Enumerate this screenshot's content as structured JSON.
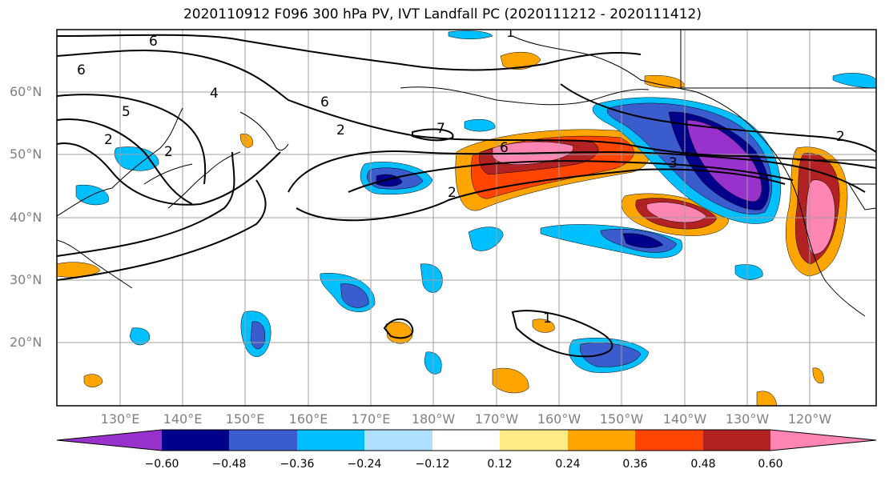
{
  "title": "2020110912 F096 300 hPa PV, IVT Landfall PC (2020111212 - 2020111412)",
  "lat_labels": [
    "60°N",
    "50°N",
    "40°N",
    "30°N",
    "20°N"
  ],
  "lon_labels": [
    "130°E",
    "140°E",
    "150°E",
    "160°E",
    "170°E",
    "180°W",
    "170°W",
    "160°W",
    "150°W",
    "140°W",
    "130°W",
    "120°W"
  ],
  "contour_labels": [
    "1",
    "6",
    "6",
    "5",
    "4",
    "2",
    "2",
    "6",
    "7",
    "6",
    "2",
    "3",
    "2",
    "1",
    "2"
  ],
  "colorbar": {
    "ticks": [
      "−0.60",
      "−0.48",
      "−0.36",
      "−0.24",
      "−0.12",
      "0.12",
      "0.24",
      "0.36",
      "0.48",
      "0.60"
    ],
    "colors": [
      "#9932cc",
      "#00008b",
      "#3a5ccc",
      "#00bfff",
      "#b0e0ff",
      "#ffffff",
      "#ffeb85",
      "#ffa500",
      "#ff4500",
      "#b22222",
      "#ff85b3"
    ]
  }
}
